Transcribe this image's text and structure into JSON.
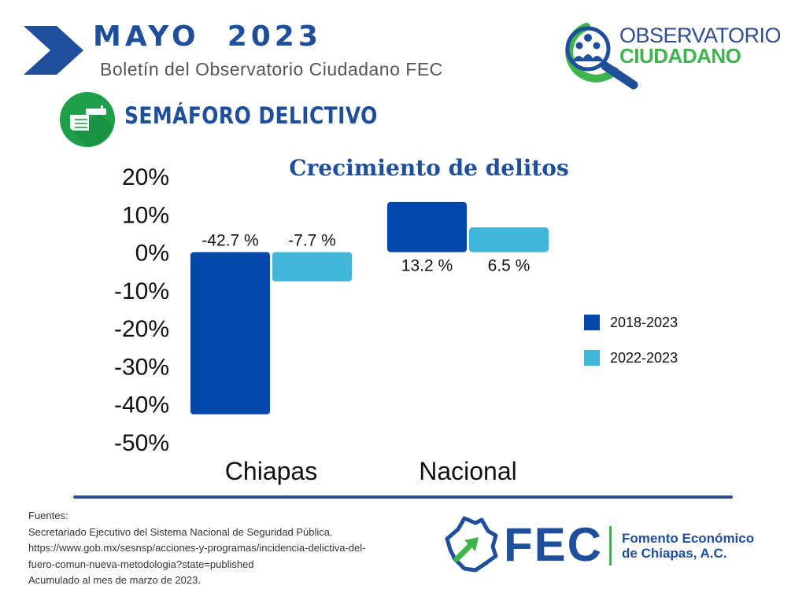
{
  "header": {
    "title": "MAYO  2023",
    "subtitle": "Boletín del Observatorio Ciudadano FEC"
  },
  "observatorio_logo": {
    "line1": "OBSERVATORIO",
    "line2": "CIUDADANO"
  },
  "section": {
    "title": "SEMÁFORO DELICTIVO",
    "icon": "hand-gun-icon"
  },
  "chart_data": {
    "type": "bar",
    "title": "Crecimiento de delitos",
    "categories": [
      "Chiapas",
      "Nacional"
    ],
    "series": [
      {
        "name": "2018-2023",
        "values": [
          -42.7,
          13.2
        ],
        "labels": [
          "-42.7 %",
          "13.2 %"
        ],
        "color": "#0047ab"
      },
      {
        "name": "2022-2023",
        "values": [
          -7.7,
          6.5
        ],
        "labels": [
          "-7.7 %",
          "6.5 %"
        ],
        "color": "#41b6d9"
      }
    ],
    "y_ticks": [
      "20%",
      "10%",
      "0%",
      "-10%",
      "-20%",
      "-30%",
      "-40%",
      "-50%"
    ],
    "ylim": [
      -50,
      20
    ],
    "grid": false,
    "legend_position": "right"
  },
  "sources": {
    "lines": [
      "Fuentes:",
      "Secretariado Ejecutivo del Sistema Nacional de Seguridad Pública.",
      "https://www.gob.mx/sesnsp/acciones-y-programas/incidencia-delictiva-del-",
      "fuero-comun-nueva-metodologia?state=published",
      "Acumulado al mes de marzo de 2023."
    ]
  },
  "fec_logo": {
    "acronym": "FEC",
    "name_line1": "Fomento Económico",
    "name_line2": "de Chiapas, A.C."
  },
  "colors": {
    "brand_blue": "#1f4e9a",
    "brand_green": "#3eb54a"
  }
}
